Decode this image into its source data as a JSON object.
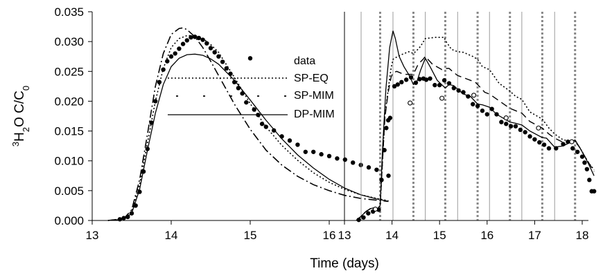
{
  "chart_data": [
    {
      "type": "line",
      "xlabel": "",
      "ylabel": "³H₂O C/C₀",
      "ylabel_parts": {
        "super": "3",
        "base1": "H",
        "sub": "2",
        "base2": "O C/C",
        "sub2": "0"
      },
      "xlim": [
        13,
        17
      ],
      "ylim": [
        0,
        0.035
      ],
      "xticks": [
        "13",
        "14",
        "15",
        "16"
      ],
      "yticks": [
        "0.000",
        "0.005",
        "0.010",
        "0.015",
        "0.020",
        "0.025",
        "0.030",
        "0.035"
      ],
      "grid": false,
      "legend": [
        "data",
        "SP-EQ",
        "SP-MIM",
        "DP-MIM"
      ],
      "data_points": {
        "x": [
          13.35,
          13.4,
          13.45,
          13.5,
          13.55,
          13.6,
          13.65,
          13.7,
          13.75,
          13.8,
          13.85,
          13.9,
          13.95,
          14.0,
          14.05,
          14.1,
          14.15,
          14.2,
          14.25,
          14.3,
          14.35,
          14.4,
          14.45,
          14.5,
          14.55,
          14.6,
          14.65,
          14.7,
          14.75,
          14.8,
          14.85,
          14.9,
          14.95,
          15.0,
          15.05,
          15.1,
          15.15,
          15.2,
          15.3,
          15.4,
          15.5,
          15.6,
          15.7,
          15.8,
          15.9,
          16.0,
          16.1,
          16.2,
          16.3,
          16.4,
          16.5,
          16.6,
          16.75
        ],
        "y": [
          0.0002,
          0.0004,
          0.0006,
          0.0012,
          0.0025,
          0.0048,
          0.0082,
          0.012,
          0.0164,
          0.02,
          0.0232,
          0.0253,
          0.0267,
          0.0275,
          0.028,
          0.0288,
          0.0296,
          0.0302,
          0.0307,
          0.0308,
          0.0306,
          0.0303,
          0.0297,
          0.0289,
          0.0282,
          0.0275,
          0.0266,
          0.0255,
          0.0246,
          0.0232,
          0.0222,
          0.0213,
          0.0198,
          0.0272,
          0.0186,
          0.0177,
          0.0162,
          0.0157,
          0.0151,
          0.0141,
          0.0134,
          0.0127,
          0.0115,
          0.0115,
          0.0111,
          0.0108,
          0.0104,
          0.0102,
          0.0097,
          0.0093,
          0.0089,
          0.0085,
          0.0075
        ]
      },
      "series": [
        {
          "name": "SP-EQ",
          "style": "dotted",
          "x": [
            13.2,
            13.4,
            13.5,
            13.6,
            13.7,
            13.8,
            13.9,
            14.0,
            14.1,
            14.2,
            14.3,
            14.4,
            14.5,
            14.6,
            14.8,
            15.0,
            15.2,
            15.4,
            15.6,
            15.8,
            16.0,
            16.2,
            16.4,
            16.6,
            16.75
          ],
          "y": [
            0,
            0.0003,
            0.0015,
            0.006,
            0.013,
            0.02,
            0.0255,
            0.029,
            0.0305,
            0.031,
            0.031,
            0.0305,
            0.0295,
            0.0282,
            0.024,
            0.0196,
            0.0157,
            0.0126,
            0.0101,
            0.008,
            0.0064,
            0.0052,
            0.0043,
            0.0037,
            0.0033
          ]
        },
        {
          "name": "SP-MIM",
          "style": "dash-dot",
          "x": [
            13.2,
            13.4,
            13.5,
            13.6,
            13.7,
            13.8,
            13.9,
            14.0,
            14.1,
            14.15,
            14.2,
            14.3,
            14.4,
            14.5,
            14.6,
            14.8,
            15.0,
            15.2,
            15.4,
            15.6,
            15.8,
            16.0,
            16.2,
            16.4,
            16.6,
            16.75
          ],
          "y": [
            0,
            0.0003,
            0.0018,
            0.0068,
            0.0145,
            0.0225,
            0.028,
            0.0312,
            0.0322,
            0.0323,
            0.032,
            0.0308,
            0.029,
            0.0267,
            0.0243,
            0.0195,
            0.0153,
            0.0118,
            0.0093,
            0.0074,
            0.006,
            0.005,
            0.0042,
            0.0037,
            0.0034,
            0.0032
          ]
        },
        {
          "name": "DP-MIM",
          "style": "solid",
          "x": [
            13.2,
            13.4,
            13.5,
            13.6,
            13.7,
            13.8,
            13.9,
            14.0,
            14.1,
            14.2,
            14.3,
            14.4,
            14.5,
            14.6,
            14.8,
            15.0,
            15.2,
            15.4,
            15.6,
            15.8,
            16.0,
            16.2,
            16.4,
            16.6,
            16.75
          ],
          "y": [
            0,
            0.0002,
            0.0012,
            0.0052,
            0.0118,
            0.018,
            0.0228,
            0.0258,
            0.0272,
            0.0278,
            0.0279,
            0.0277,
            0.0271,
            0.0262,
            0.0235,
            0.0202,
            0.0168,
            0.0137,
            0.011,
            0.0088,
            0.0069,
            0.0054,
            0.0043,
            0.0036,
            0.0032
          ]
        }
      ]
    },
    {
      "type": "line",
      "xlabel": "Time (days)",
      "xlim": [
        13,
        18.35
      ],
      "ylim": [
        0,
        0.035
      ],
      "xticks": [
        "13",
        "14",
        "15",
        "16",
        "17",
        "18"
      ],
      "grid": false,
      "legend": [],
      "vertical_lines_solid": [
        13.35,
        14.02,
        14.7,
        15.38,
        16.05,
        16.73,
        17.42
      ],
      "vertical_lines_dotted": [
        13.75,
        14.45,
        15.12,
        15.8,
        16.48,
        17.16,
        17.85
      ],
      "data_points": {
        "x": [
          13.3,
          13.4,
          13.5,
          13.6,
          13.72,
          13.78,
          13.84,
          13.88,
          13.92,
          13.96,
          14.05,
          14.12,
          14.2,
          14.3,
          14.4,
          14.5,
          14.58,
          14.66,
          14.72,
          14.8,
          14.9,
          15.0,
          15.1,
          15.2,
          15.3,
          15.4,
          15.5,
          15.6,
          15.7,
          15.8,
          15.9,
          16.0,
          16.1,
          16.2,
          16.3,
          16.4,
          16.5,
          16.6,
          16.7,
          16.8,
          16.9,
          17.0,
          17.1,
          17.2,
          17.3,
          17.45,
          17.6,
          17.7,
          17.8,
          17.9,
          18.0,
          18.05,
          18.1,
          18.15,
          18.2,
          18.25
        ],
        "y": [
          0.0001,
          0.0005,
          0.0012,
          0.0015,
          0.0018,
          0.0068,
          0.0118,
          0.0155,
          0.0168,
          0.0172,
          0.0225,
          0.0228,
          0.0232,
          0.0236,
          0.024,
          0.0231,
          0.0237,
          0.0238,
          0.0236,
          0.0238,
          0.0227,
          0.0227,
          0.0235,
          0.023,
          0.0222,
          0.0218,
          0.0215,
          0.0208,
          0.0195,
          0.0192,
          0.0184,
          0.0178,
          0.0187,
          0.0178,
          0.0165,
          0.0162,
          0.0158,
          0.0158,
          0.0152,
          0.0148,
          0.0141,
          0.0136,
          0.0131,
          0.0127,
          0.0121,
          0.0121,
          0.0128,
          0.0132,
          0.0121,
          0.0115,
          0.0107,
          0.0097,
          0.0086,
          0.0068,
          0.0049,
          0.0049
        ]
      },
      "open_points": {
        "x": [
          13.65,
          14.38,
          15.05,
          15.72,
          16.4,
          17.08,
          17.78
        ],
        "y": [
          0.0019,
          0.0197,
          0.0205,
          0.021,
          0.0172,
          0.0155,
          0.0132
        ]
      },
      "series": [
        {
          "name": "",
          "style": "dotted",
          "x": [
            13.25,
            13.35,
            13.45,
            13.55,
            13.62,
            13.7,
            13.75,
            13.8,
            13.85,
            13.92,
            13.98,
            14.02,
            14.05,
            14.2,
            14.35,
            14.45,
            14.52,
            14.6,
            14.7,
            14.9,
            15.1,
            15.12,
            15.25,
            15.38,
            15.5,
            15.7,
            15.8,
            15.9,
            16.05,
            16.25,
            16.48,
            16.6,
            16.73,
            16.9,
            17.16,
            17.3,
            17.42,
            17.6,
            17.85,
            17.95,
            18.05,
            18.15,
            18.25
          ],
          "y": [
            0,
            0.0007,
            0.0015,
            0.002,
            0.0021,
            0.002,
            0.0025,
            0.01,
            0.0175,
            0.022,
            0.0255,
            0.027,
            0.0272,
            0.0278,
            0.0283,
            0.028,
            0.0285,
            0.0292,
            0.0305,
            0.0307,
            0.0307,
            0.0302,
            0.0287,
            0.0283,
            0.0282,
            0.0275,
            0.027,
            0.0258,
            0.0253,
            0.023,
            0.0217,
            0.0208,
            0.0203,
            0.0182,
            0.017,
            0.0155,
            0.0145,
            0.0135,
            0.0133,
            0.0122,
            0.0108,
            0.0095,
            0.0085
          ]
        },
        {
          "name": "",
          "style": "dashed",
          "x": [
            13.25,
            13.35,
            13.45,
            13.55,
            13.62,
            13.7,
            13.75,
            13.8,
            13.85,
            13.92,
            13.98,
            14.02,
            14.1,
            14.25,
            14.45,
            14.55,
            14.65,
            14.7,
            14.85,
            15.05,
            15.12,
            15.2,
            15.3,
            15.38,
            15.55,
            15.75,
            15.8,
            15.95,
            16.05,
            16.3,
            16.48,
            16.6,
            16.73,
            16.9,
            17.16,
            17.3,
            17.42,
            17.6,
            17.85,
            17.95,
            18.05,
            18.15,
            18.25
          ],
          "y": [
            0,
            0.0007,
            0.0015,
            0.002,
            0.0021,
            0.002,
            0.0025,
            0.01,
            0.0172,
            0.0215,
            0.024,
            0.0248,
            0.025,
            0.0245,
            0.0245,
            0.0262,
            0.027,
            0.0275,
            0.0262,
            0.0253,
            0.0255,
            0.0255,
            0.0248,
            0.0243,
            0.0238,
            0.0232,
            0.0228,
            0.0215,
            0.0212,
            0.0198,
            0.0188,
            0.0184,
            0.018,
            0.0166,
            0.0155,
            0.0145,
            0.0138,
            0.0131,
            0.0133,
            0.0122,
            0.0108,
            0.0095,
            0.0082
          ]
        },
        {
          "name": "",
          "style": "solid",
          "x": [
            13.25,
            13.35,
            13.45,
            13.55,
            13.62,
            13.7,
            13.75,
            13.8,
            13.87,
            13.95,
            14.02,
            14.07,
            14.15,
            14.25,
            14.35,
            14.45,
            14.52,
            14.6,
            14.7,
            14.8,
            14.95,
            15.12,
            15.2,
            15.3,
            15.38,
            15.5,
            15.65,
            15.8,
            15.9,
            16.05,
            16.2,
            16.48,
            16.6,
            16.73,
            16.9,
            17.16,
            17.25,
            17.42,
            17.6,
            17.85,
            17.95,
            18.05,
            18.15,
            18.25
          ],
          "y": [
            0,
            0.0007,
            0.0015,
            0.002,
            0.0021,
            0.002,
            0.0025,
            0.012,
            0.022,
            0.029,
            0.0318,
            0.0305,
            0.0275,
            0.0258,
            0.0245,
            0.0228,
            0.0232,
            0.0252,
            0.0272,
            0.0258,
            0.0235,
            0.0222,
            0.0228,
            0.0226,
            0.022,
            0.0212,
            0.0208,
            0.0195,
            0.0194,
            0.019,
            0.0178,
            0.0165,
            0.0163,
            0.016,
            0.015,
            0.0139,
            0.0138,
            0.0123,
            0.0125,
            0.0135,
            0.0122,
            0.0108,
            0.0092,
            0.0075
          ]
        }
      ]
    }
  ]
}
